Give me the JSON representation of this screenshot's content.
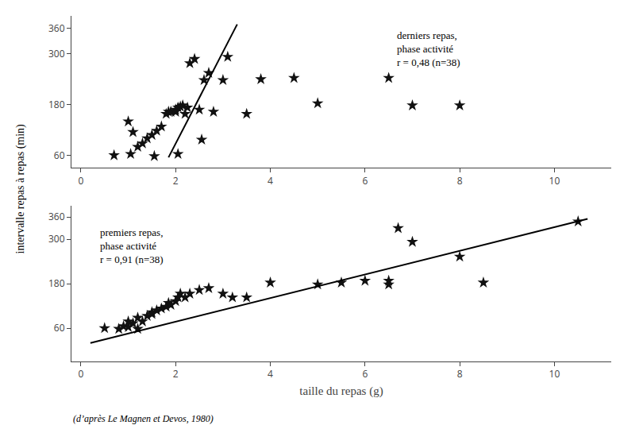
{
  "chart_data": [
    {
      "type": "scatter",
      "ylabel": "intervalle repas à repas (min)",
      "annotations": [
        "derniers repas,\nphase activité\nr = 0,48 (n=38)"
      ],
      "xlim": [
        -0.2,
        11.2
      ],
      "xticks": [
        0,
        2,
        4,
        6,
        8,
        10
      ],
      "ylim": [
        30,
        390
      ],
      "yticks": [
        60,
        180,
        300,
        360
      ],
      "grid": false,
      "series": [
        {
          "type": "scatter",
          "marker": "star",
          "color": "#111111",
          "x": [
            0.7,
            1.0,
            1.1,
            1.2,
            1.3,
            1.4,
            1.5,
            1.6,
            1.7,
            1.8,
            1.85,
            1.9,
            2.0,
            2.0,
            2.05,
            2.1,
            2.15,
            2.2,
            2.25,
            2.3,
            2.4,
            2.5,
            2.6,
            2.7,
            2.8,
            3.0,
            3.1,
            3.5,
            3.8,
            4.5,
            5.0,
            6.5,
            7.0,
            8.0,
            1.05,
            1.55,
            2.05,
            2.55
          ],
          "values": [
            60,
            140,
            115,
            80,
            88,
            100,
            108,
            118,
            128,
            158,
            163,
            163,
            163,
            168,
            173,
            175,
            178,
            158,
            173,
            278,
            288,
            168,
            238,
            255,
            163,
            238,
            293,
            158,
            240,
            243,
            183,
            243,
            178,
            178,
            63,
            58,
            63,
            97
          ]
        },
        {
          "type": "line",
          "color": "#000000",
          "x": [
            1.85,
            3.3
          ],
          "values": [
            55,
            370
          ]
        }
      ]
    },
    {
      "type": "scatter",
      "xlabel": "taille du repas (g)",
      "footnote": "(d’après Le Magnen et Devos, 1980)",
      "annotations": [
        "premiers repas,\nphase activité\nr = 0,91 (n=38)"
      ],
      "xlim": [
        -0.2,
        11.2
      ],
      "xticks": [
        0,
        2,
        4,
        6,
        8,
        10
      ],
      "ylim": [
        -30,
        390
      ],
      "yticks": [
        60,
        180,
        300,
        360
      ],
      "grid": false,
      "series": [
        {
          "type": "scatter",
          "marker": "star",
          "color": "#111111",
          "x": [
            0.5,
            0.8,
            0.9,
            1.0,
            1.0,
            1.1,
            1.2,
            1.3,
            1.4,
            1.5,
            1.5,
            1.6,
            1.7,
            1.8,
            1.85,
            1.9,
            2.0,
            2.05,
            2.1,
            2.2,
            2.3,
            2.5,
            2.7,
            3.0,
            3.2,
            3.5,
            4.0,
            5.0,
            5.5,
            6.0,
            6.5,
            6.5,
            6.7,
            7.0,
            8.0,
            8.5,
            10.5,
            1.2
          ],
          "values": [
            60,
            58,
            65,
            63,
            78,
            73,
            88,
            78,
            93,
            98,
            103,
            108,
            113,
            118,
            128,
            123,
            133,
            143,
            153,
            143,
            153,
            163,
            168,
            153,
            143,
            143,
            183,
            178,
            183,
            188,
            178,
            188,
            330,
            293,
            253,
            183,
            348,
            58
          ]
        },
        {
          "type": "line",
          "color": "#000000",
          "x": [
            0.2,
            10.7
          ],
          "values": [
            20,
            355
          ]
        }
      ]
    }
  ]
}
